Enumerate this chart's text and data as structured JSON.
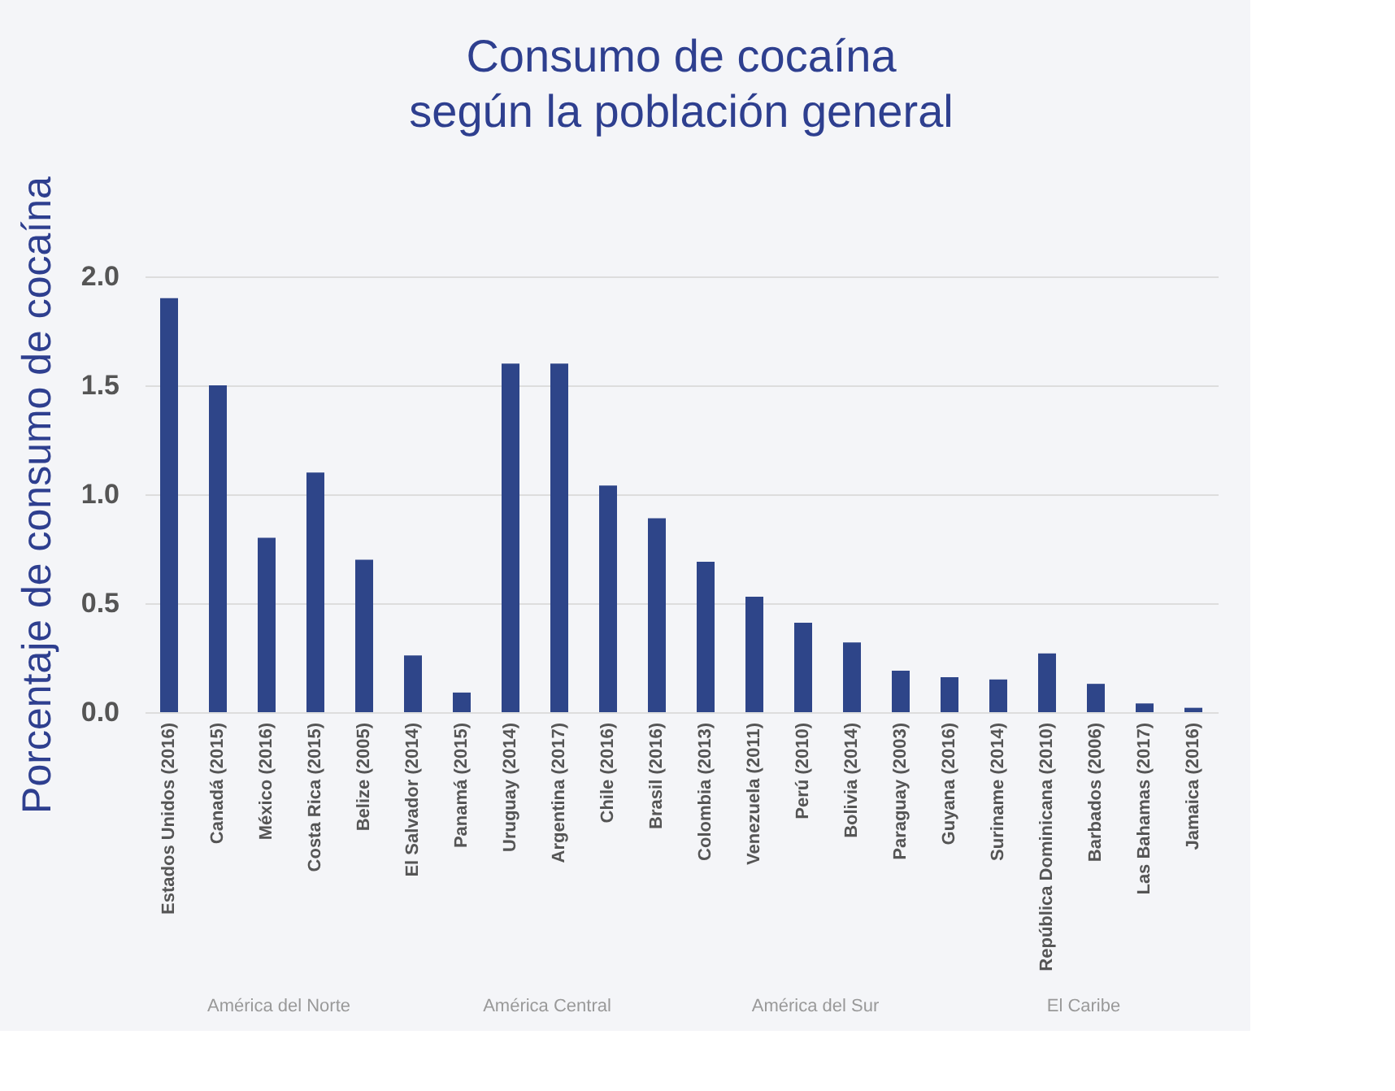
{
  "chart_data": {
    "type": "bar",
    "title": [
      "Consumo de cocaína",
      "según la población general"
    ],
    "ylabel": "Porcentaje de consumo de cocaína",
    "categories": [
      "Estados Unidos (2016)",
      "Canadá (2015)",
      "México (2016)",
      "Costa Rica (2015)",
      "Belize (2005)",
      "El Salvador (2014)",
      "Panamá (2015)",
      "Uruguay (2014)",
      "Argentina (2017)",
      "Chile (2016)",
      "Brasil (2016)",
      "Colombia (2013)",
      "Venezuela (2011)",
      "Perú (2010)",
      "Bolivia (2014)",
      "Paraguay (2003)",
      "Guyana (2016)",
      "Suriname (2014)",
      "República Dominicana (2010)",
      "Barbados (2006)",
      "Las Bahamas (2017)",
      "Jamaica (2016)"
    ],
    "values": [
      1.9,
      1.5,
      0.8,
      1.1,
      0.7,
      0.26,
      0.09,
      1.6,
      1.6,
      1.04,
      0.89,
      0.69,
      0.53,
      0.41,
      0.32,
      0.19,
      0.16,
      0.15,
      0.27,
      0.13,
      0.04,
      0.02
    ],
    "color": "#2e4589",
    "ylim": [
      0,
      2.0
    ],
    "yticks": [
      {
        "value": 0,
        "label": "0.0"
      },
      {
        "value": 0.5,
        "label": "0.5"
      },
      {
        "value": 1.0,
        "label": "1.0"
      },
      {
        "value": 1.5,
        "label": "1.5"
      },
      {
        "value": 2.0,
        "label": "2.0"
      }
    ],
    "grid": "y",
    "annotations": [
      "América del Norte",
      "América Central",
      "América del Sur",
      "El Caribe"
    ]
  }
}
